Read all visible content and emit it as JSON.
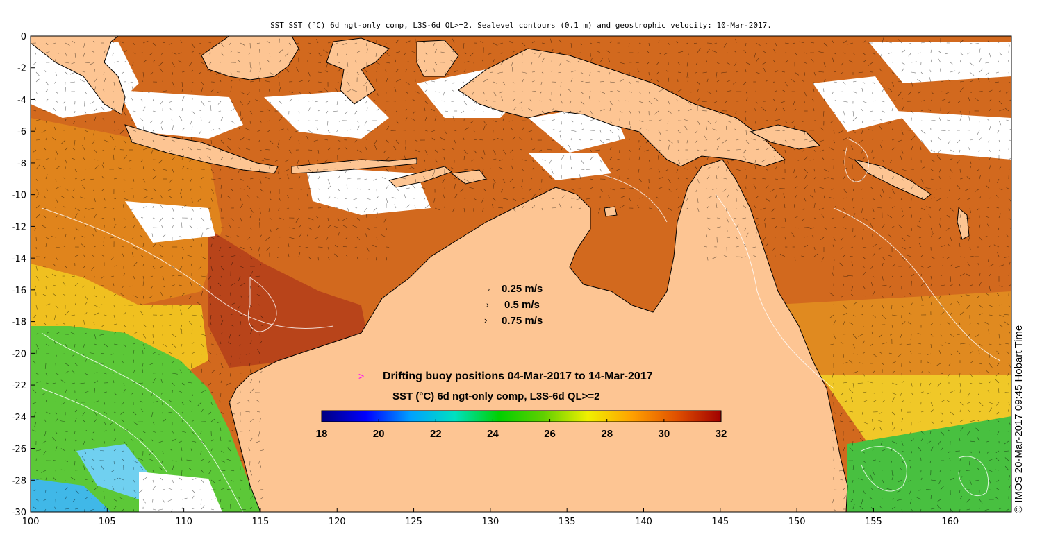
{
  "title": "SST SST (°C) 6d ngt-only comp, L3S-6d QL>=2. Sealevel contours (0.1 m) and geostrophic velocity: 10-Mar-2017.",
  "velocity_legend": [
    "0.25 m/s",
    "0.5 m/s",
    "0.75 m/s"
  ],
  "buoy_legend": {
    "symbol": ">",
    "label": "Drifting buoy positions 04-Mar-2017 to 14-Mar-2017",
    "symbol_color": "#ff00ff"
  },
  "colorbar": {
    "title": "SST (°C) 6d ngt-only comp, L3S-6d QL>=2",
    "min": 18,
    "max": 32,
    "tick_labels": [
      "18",
      "20",
      "22",
      "24",
      "26",
      "28",
      "30",
      "32"
    ],
    "stops": [
      "#00007f",
      "#0000ff",
      "#00a0ff",
      "#00e0c0",
      "#00d000",
      "#60d000",
      "#f0f000",
      "#ffa000",
      "#e05000",
      "#a00000"
    ]
  },
  "credit": "© IMOS 20-Mar-2017 09:45 Hobart Time",
  "colors": {
    "land": "#fdc593",
    "ocean_warm": "#d2691e",
    "ocean_hot": "#b8441a",
    "ocean_mid": "#e89a20",
    "ocean_cool": "#f0d020",
    "ocean_green": "#40c040",
    "ocean_cold": "#40b0e0",
    "coast": "#000000",
    "contour": "#ffffff"
  },
  "axes": {
    "x_ticks": [
      "100",
      "105",
      "110",
      "115",
      "120",
      "125",
      "130",
      "135",
      "140",
      "145",
      "150",
      "155",
      "160"
    ],
    "y_ticks": [
      "0",
      "-2",
      "-4",
      "-6",
      "-8",
      "-10",
      "-12",
      "-14",
      "-16",
      "-18",
      "-20",
      "-22",
      "-24",
      "-26",
      "-28",
      "-30"
    ],
    "lon_range": [
      100,
      164
    ],
    "lat_range": [
      -30,
      0
    ]
  }
}
